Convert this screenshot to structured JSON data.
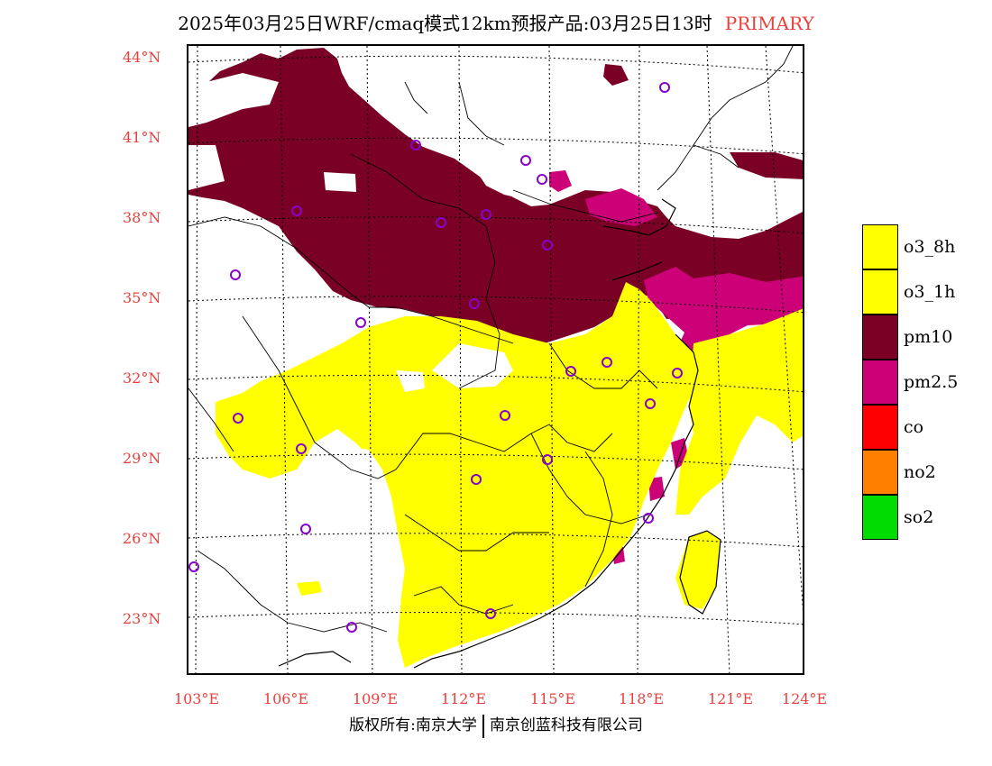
{
  "title": {
    "main": "2025年03月25日WRF/cmaq模式12km预报产品:03月25日13时",
    "flag": "PRIMARY"
  },
  "axes": {
    "lat_labels": [
      "44°N",
      "41°N",
      "38°N",
      "35°N",
      "32°N",
      "29°N",
      "26°N",
      "23°N"
    ],
    "lon_labels": [
      "103°E",
      "106°E",
      "109°E",
      "112°E",
      "115°E",
      "118°E",
      "121°E",
      "124°E"
    ]
  },
  "legend": {
    "items": [
      {
        "label": "o3_8h",
        "color": "#ffff00"
      },
      {
        "label": "o3_1h",
        "color": "#ffff00"
      },
      {
        "label": "pm10",
        "color": "#7b0026"
      },
      {
        "label": "pm2.5",
        "color": "#cc0077"
      },
      {
        "label": "co",
        "color": "#ff0000"
      },
      {
        "label": "no2",
        "color": "#ff7f00"
      },
      {
        "label": "so2",
        "color": "#00dd00"
      }
    ]
  },
  "footer": {
    "left": "版权所有:南京大学",
    "right": "南京创蓝科技有限公司"
  }
}
